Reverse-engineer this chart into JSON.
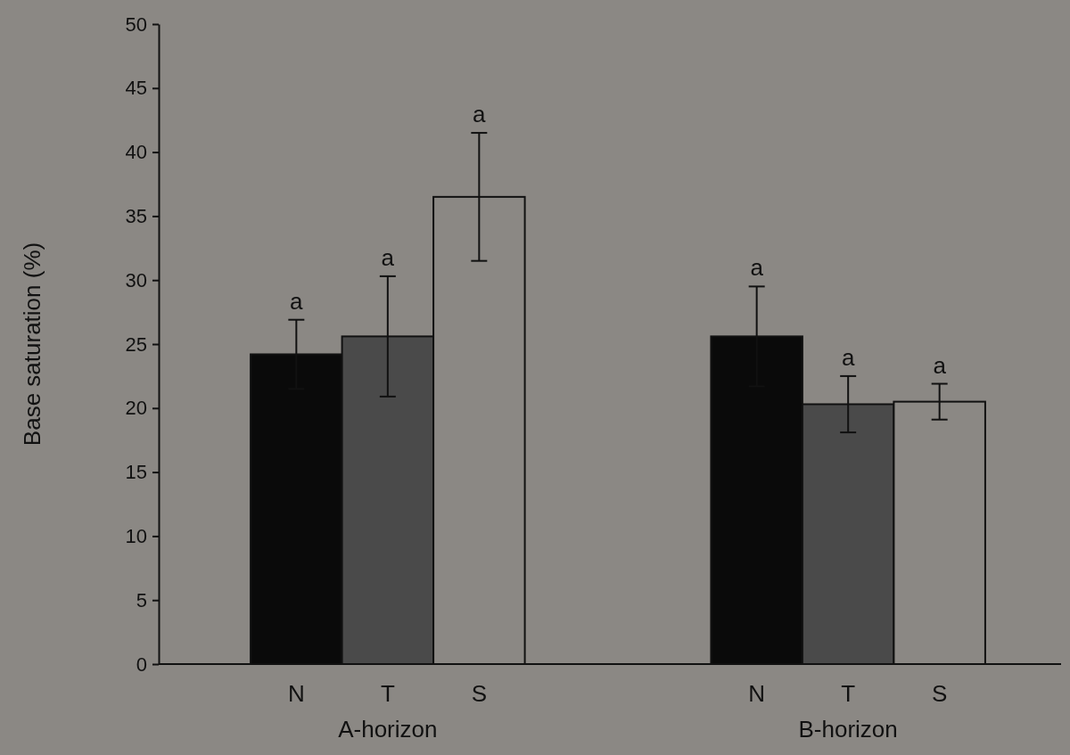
{
  "chart_data": {
    "type": "bar",
    "ylabel": "Base saturation (%)",
    "categories": [
      "A-horizon",
      "B-horizon"
    ],
    "series": [
      {
        "name": "N",
        "color": "#0a0a0a",
        "values": [
          24.2,
          25.6
        ],
        "errors": [
          2.7,
          3.9
        ],
        "value_labels": [
          "a",
          "a"
        ]
      },
      {
        "name": "T",
        "color": "#4a4a4a",
        "values": [
          25.6,
          20.3
        ],
        "errors": [
          4.7,
          2.2
        ],
        "value_labels": [
          "a",
          "a"
        ]
      },
      {
        "name": "S",
        "color": "#8b8884",
        "values": [
          36.5,
          20.5
        ],
        "errors": [
          5.0,
          1.4
        ],
        "value_labels": [
          "a",
          "a"
        ]
      }
    ],
    "ylim": [
      0,
      50
    ],
    "yticks": [
      0,
      5,
      10,
      15,
      20,
      25,
      30,
      35,
      40,
      45,
      50
    ],
    "grid": false,
    "legend": false
  }
}
